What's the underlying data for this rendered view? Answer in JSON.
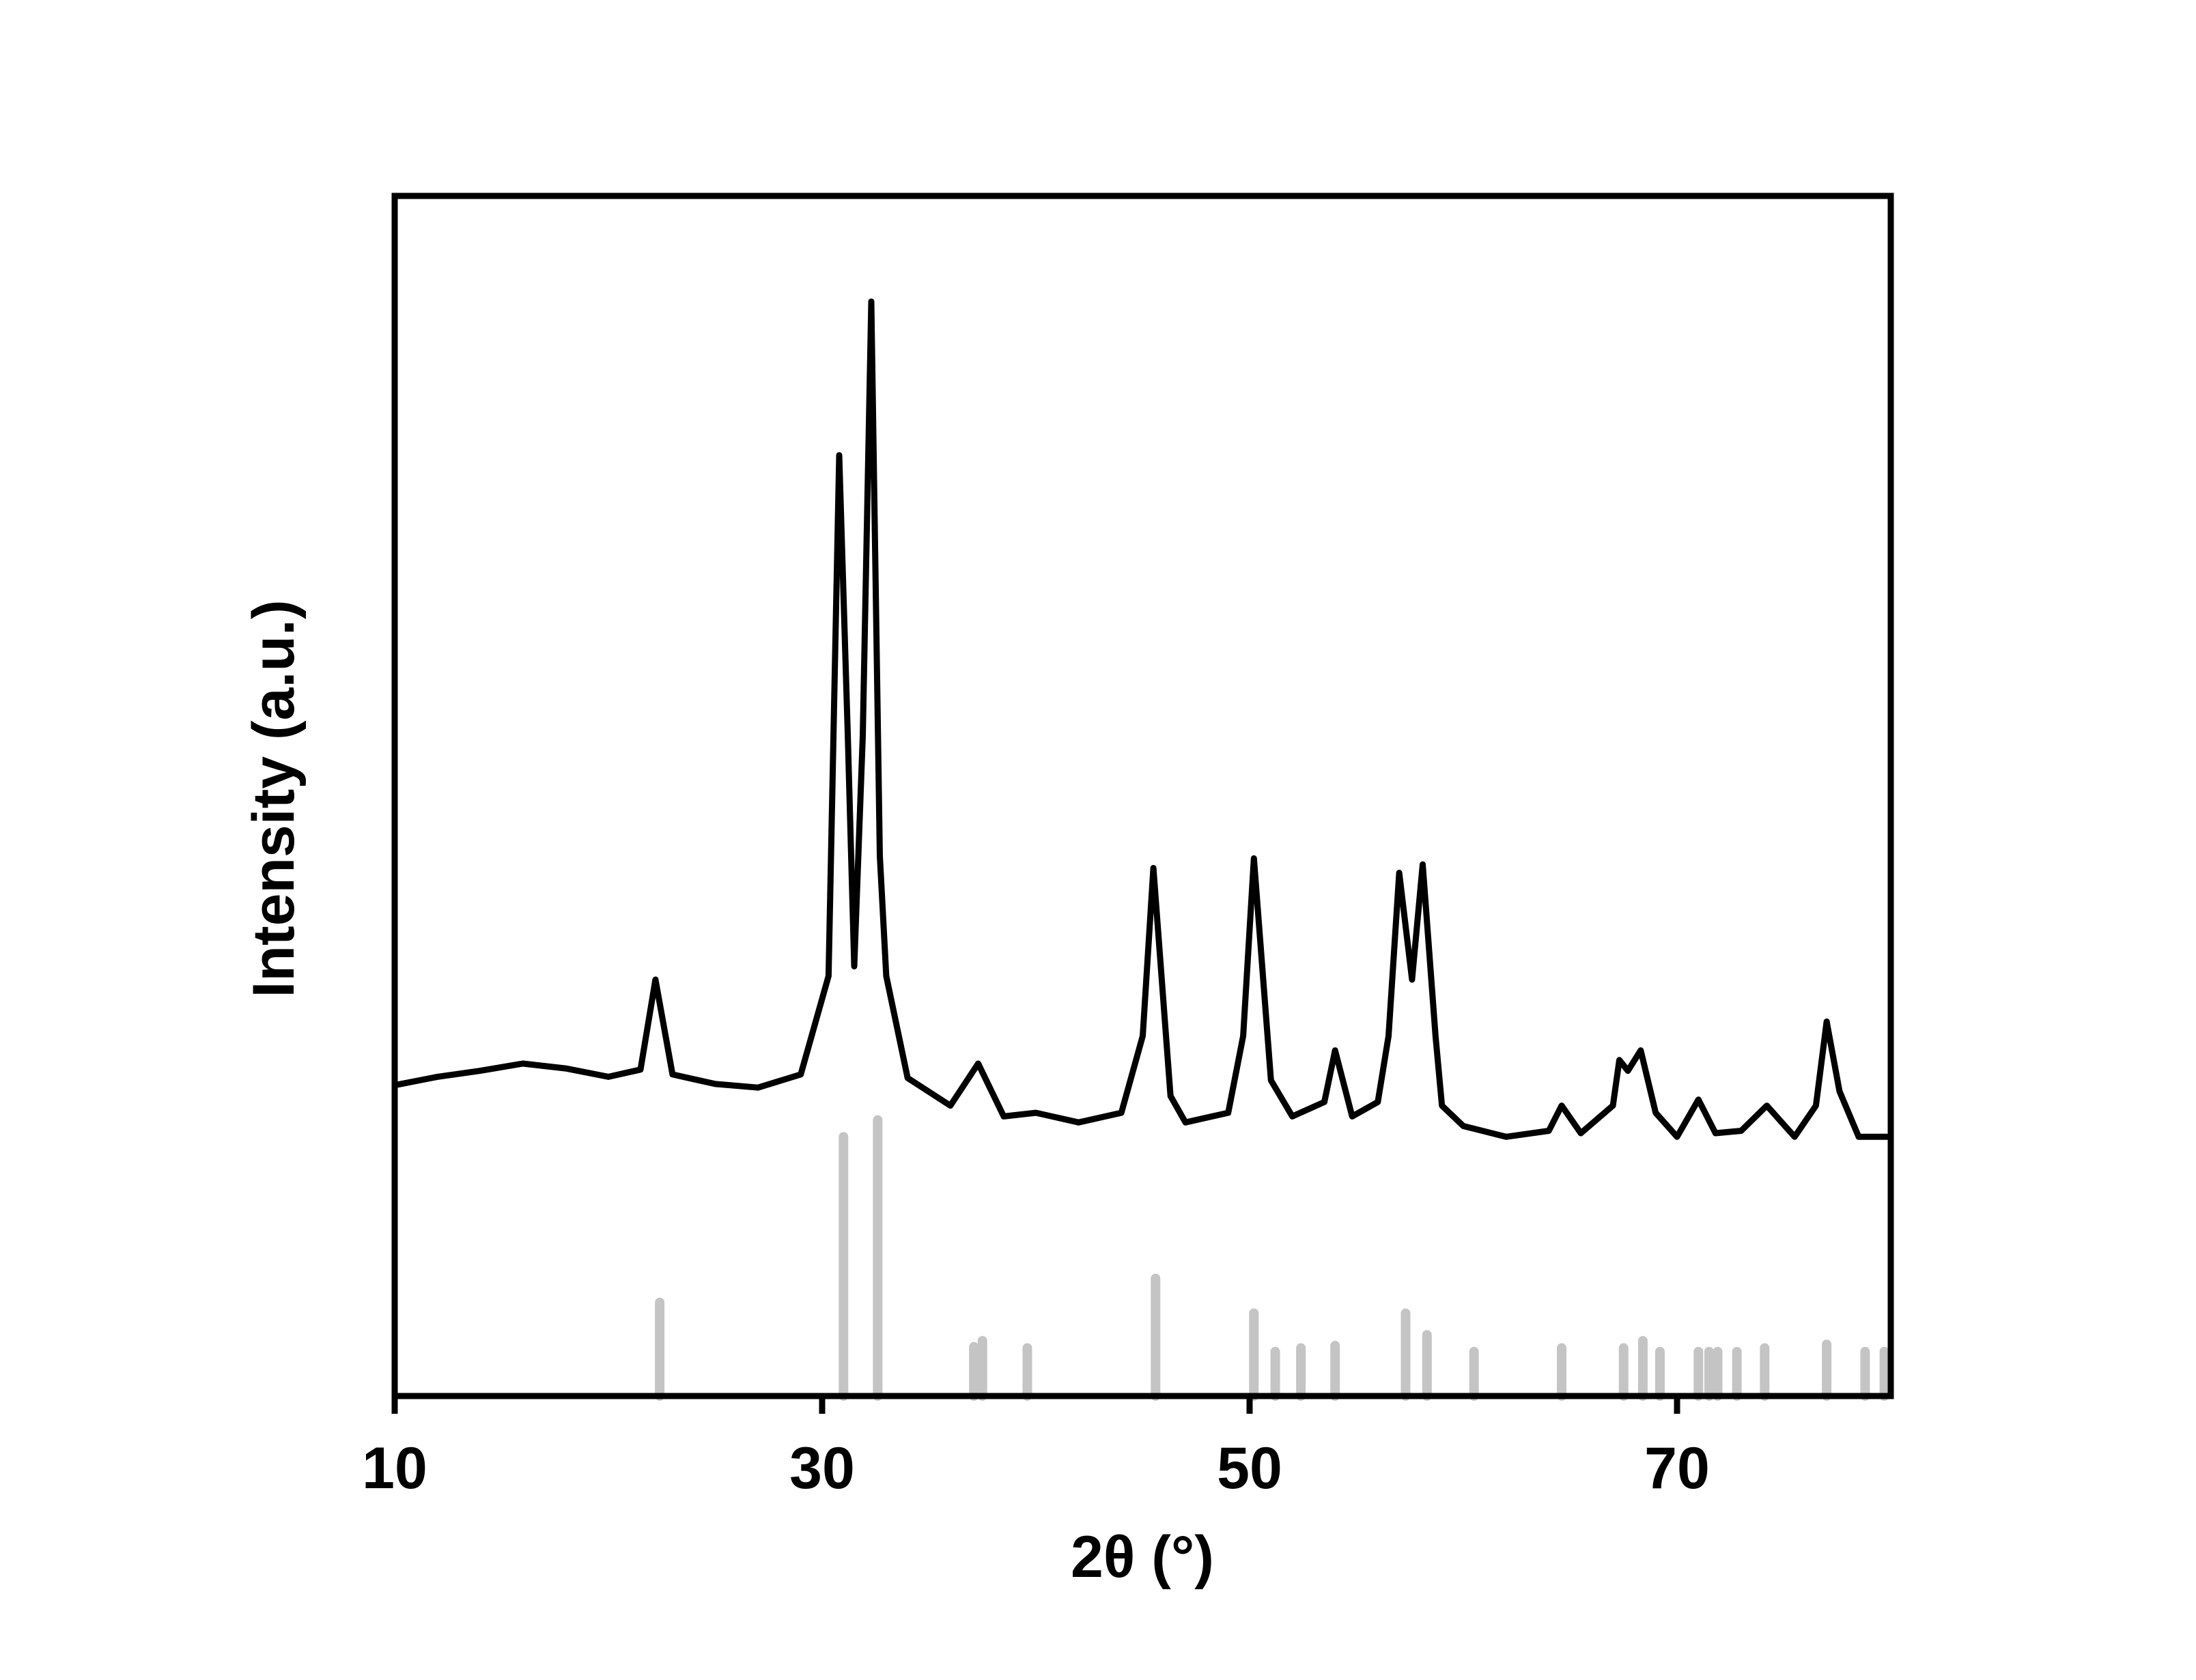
{
  "chart_data": {
    "type": "line",
    "x_label": "2θ (°)",
    "y_label": "Intensity (a.u.)",
    "xlim": [
      10,
      80
    ],
    "xticks": [
      10,
      30,
      50,
      70
    ],
    "ylim": [
      0,
      100
    ],
    "series": [
      {
        "type": "line",
        "color": "#000000",
        "x": [
          10,
          12,
          14,
          16,
          18,
          20,
          21.5,
          22.2,
          23,
          25,
          27,
          29,
          30.3,
          30.8,
          31.2,
          31.5,
          31.9,
          32.3,
          32.7,
          33,
          34,
          36,
          37.3,
          38.5,
          40,
          42,
          44,
          45,
          45.5,
          46.3,
          47,
          49,
          49.7,
          50.2,
          51,
          52,
          53.5,
          54,
          54.8,
          56,
          56.5,
          57,
          57.6,
          58.1,
          58.7,
          59,
          60,
          62,
          64,
          64.6,
          65.5,
          67,
          67.3,
          67.7,
          68.3,
          69,
          70,
          71,
          71.8,
          73,
          74.2,
          75.5,
          76.5,
          77,
          77.6,
          78.5,
          80
        ],
        "values": [
          25.9,
          26.6,
          27.1,
          27.7,
          27.3,
          26.6,
          27.2,
          34.7,
          26.8,
          26.0,
          25.7,
          26.8,
          35.0,
          78.4,
          55.0,
          35.8,
          55.0,
          91.2,
          45.0,
          35.0,
          26.5,
          24.2,
          27.7,
          23.3,
          23.6,
          22.8,
          23.6,
          30.0,
          44.0,
          25.0,
          22.8,
          23.6,
          30.0,
          44.8,
          26.3,
          23.3,
          24.5,
          28.8,
          23.3,
          24.5,
          30.0,
          43.6,
          34.7,
          44.3,
          30.0,
          24.2,
          22.5,
          21.6,
          22.1,
          24.2,
          21.9,
          24.2,
          28.0,
          27.1,
          28.8,
          23.6,
          21.6,
          24.7,
          21.9,
          22.1,
          24.2,
          21.6,
          24.2,
          31.2,
          25.4,
          21.6,
          21.6
        ]
      },
      {
        "type": "stick",
        "color": "#c4c4c4",
        "x": [
          22.4,
          31.0,
          32.6,
          37.1,
          37.5,
          39.6,
          45.6,
          50.2,
          51.2,
          52.4,
          54.0,
          57.3,
          58.3,
          60.5,
          64.6,
          67.5,
          68.4,
          69.2,
          71.0,
          71.5,
          71.9,
          72.8,
          74.1,
          77.0,
          78.8,
          79.7
        ],
        "values": [
          7.8,
          21.6,
          23.0,
          4.1,
          4.6,
          4.0,
          9.8,
          6.9,
          3.7,
          4.0,
          4.2,
          6.9,
          5.1,
          3.7,
          4.0,
          4.0,
          4.6,
          3.7,
          3.7,
          3.7,
          3.7,
          3.7,
          4.0,
          4.3,
          3.7,
          3.7
        ]
      }
    ]
  }
}
